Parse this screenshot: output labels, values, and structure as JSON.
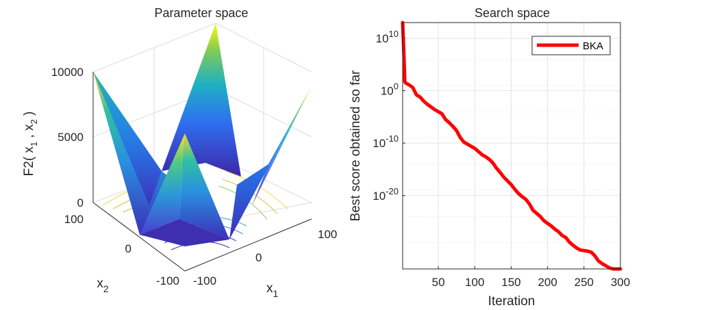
{
  "colors": {
    "line": "#ff0000",
    "axis": "#262626",
    "grid": "#dcdcdc",
    "surface_low": "#3e26a8",
    "surface_mid": "#21b3b7",
    "surface_high": "#f9fb0e"
  },
  "chart_data": [
    {
      "type": "surface3d",
      "title": "Parameter space",
      "function": "F2",
      "zlabel_parts": [
        "F2( x",
        "1",
        " , x",
        "2",
        " )"
      ],
      "xlabel_main": "x",
      "xlabel_sub": "1",
      "ylabel_main": "x",
      "ylabel_sub": "2",
      "x_range": [
        -100,
        100
      ],
      "y_range": [
        -100,
        100
      ],
      "z_range": [
        0,
        10000
      ],
      "x_ticks": [
        "-100",
        "0",
        "100"
      ],
      "y_ticks": [
        "100",
        "0",
        "-100"
      ],
      "z_ticks": [
        "0",
        "5000",
        "10000"
      ],
      "contour_levels": [
        1500,
        3000,
        4500,
        6000,
        7500,
        9000
      ]
    },
    {
      "type": "line",
      "title": "Search space",
      "xlabel": "Iteration",
      "ylabel": "Best score obtained so far",
      "yscale": "log",
      "xlim": [
        1,
        300
      ],
      "ylim_log10": [
        -34,
        13
      ],
      "x_ticks": [
        "50",
        "100",
        "150",
        "200",
        "250",
        "300"
      ],
      "y_ticks": [
        {
          "base": "10",
          "exp": "10"
        },
        {
          "base": "10",
          "exp": "0"
        },
        {
          "base": "10",
          "exp": "-10"
        },
        {
          "base": "10",
          "exp": "-20"
        }
      ],
      "legend": {
        "entries": [
          "BKA"
        ],
        "position": "top-right"
      },
      "series": [
        {
          "name": "BKA",
          "color": "#ff0000",
          "x": [
            1,
            3,
            4,
            6,
            10,
            15,
            20,
            25,
            30,
            35,
            40,
            45,
            50,
            55,
            60,
            65,
            70,
            75,
            80,
            85,
            90,
            95,
            100,
            105,
            110,
            115,
            120,
            125,
            130,
            135,
            140,
            145,
            150,
            155,
            160,
            165,
            170,
            175,
            180,
            185,
            190,
            195,
            200,
            205,
            210,
            215,
            220,
            225,
            230,
            235,
            240,
            245,
            250,
            255,
            260,
            265,
            270,
            275,
            280,
            285,
            290,
            295,
            300
          ],
          "log10_y": [
            13.0,
            6.0,
            1.7,
            1.4,
            1.1,
            0.6,
            -0.8,
            -1.2,
            -2.0,
            -2.6,
            -3.1,
            -3.6,
            -4.0,
            -4.4,
            -5.5,
            -6.1,
            -6.8,
            -7.6,
            -8.9,
            -9.8,
            -10.2,
            -10.6,
            -11.0,
            -11.6,
            -12.2,
            -12.6,
            -13.1,
            -13.8,
            -14.8,
            -15.6,
            -16.5,
            -17.2,
            -17.9,
            -18.8,
            -19.6,
            -20.2,
            -20.7,
            -21.6,
            -22.8,
            -23.4,
            -24.0,
            -24.8,
            -25.3,
            -25.8,
            -26.4,
            -26.9,
            -27.6,
            -28.0,
            -28.9,
            -29.5,
            -30.0,
            -30.4,
            -30.5,
            -30.6,
            -30.8,
            -31.5,
            -32.5,
            -33.0,
            -33.4,
            -33.8,
            -34.2,
            -34.6,
            -35.0
          ]
        }
      ]
    }
  ]
}
